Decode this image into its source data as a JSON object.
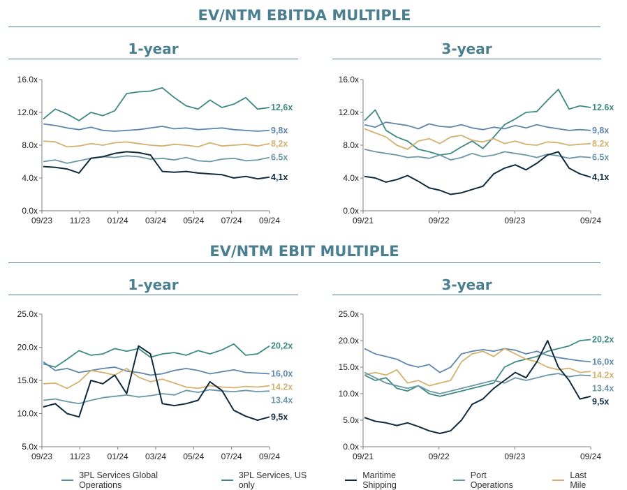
{
  "titles": {
    "ebitda": "EV/NTM EBITDA MULTIPLE",
    "ebit": "EV/NTM EBIT MULTIPLE"
  },
  "panels": {
    "one_year": "1-year",
    "three_year": "3-year"
  },
  "series_meta": [
    {
      "key": "global",
      "name": "3PL Services Global Operations",
      "color": "#5f87ad"
    },
    {
      "key": "us",
      "name": "3PL Services, US only",
      "color": "#3d8a82"
    },
    {
      "key": "maritime",
      "name": "Maritime Shipping",
      "color": "#0e2a3d"
    },
    {
      "key": "port",
      "name": "Port Operations",
      "color": "#6b97a6"
    },
    {
      "key": "lastmile",
      "name": "Last Mile",
      "color": "#d4b16e"
    }
  ],
  "chart_data": [
    {
      "id": "ebitda_1y",
      "type": "line",
      "ylim": [
        0,
        16
      ],
      "yticks": [
        "0.0x",
        "4.0x",
        "8.0x",
        "12.0x",
        "16.0x"
      ],
      "x_ticks": [
        "09/23",
        "11/23",
        "01/24",
        "03/24",
        "05/24",
        "07/24",
        "09/24"
      ],
      "series": [
        {
          "key": "us",
          "values": [
            11.2,
            12.4,
            11.8,
            11.0,
            12.0,
            11.6,
            12.2,
            14.3,
            14.5,
            14.6,
            15.0,
            13.8,
            12.8,
            12.4,
            13.5,
            12.6,
            13.0,
            13.8,
            12.4,
            12.6
          ],
          "label": "12,6x"
        },
        {
          "key": "global",
          "values": [
            10.6,
            10.4,
            10.1,
            9.9,
            10.2,
            9.8,
            9.7,
            9.8,
            9.9,
            10.1,
            10.3,
            10.0,
            10.1,
            9.9,
            10.0,
            10.1,
            9.9,
            9.8,
            9.7,
            9.8
          ],
          "label": "9,8x"
        },
        {
          "key": "lastmile",
          "values": [
            8.5,
            8.4,
            7.8,
            7.9,
            8.2,
            8.0,
            8.3,
            8.4,
            8.2,
            8.0,
            7.9,
            8.1,
            8.0,
            7.8,
            8.3,
            7.9,
            8.0,
            8.1,
            7.9,
            8.2
          ],
          "label": "8,2x"
        },
        {
          "key": "port",
          "values": [
            6.0,
            6.2,
            5.8,
            6.1,
            6.4,
            6.6,
            6.5,
            6.7,
            6.6,
            6.3,
            6.4,
            6.2,
            6.5,
            6.1,
            6.0,
            6.3,
            6.4,
            6.1,
            6.2,
            6.5
          ],
          "label": "6.5x"
        },
        {
          "key": "maritime",
          "values": [
            5.4,
            5.3,
            5.1,
            4.6,
            6.4,
            6.6,
            7.0,
            7.2,
            7.1,
            6.8,
            4.8,
            4.7,
            4.8,
            4.6,
            4.5,
            4.4,
            4.0,
            4.2,
            3.9,
            4.1
          ],
          "label": "4,1x"
        }
      ]
    },
    {
      "id": "ebitda_3y",
      "type": "line",
      "ylim": [
        0,
        16
      ],
      "yticks": [
        "0.0x",
        "4.0x",
        "8.0x",
        "12.0x",
        "16.0x"
      ],
      "x_ticks": [
        "09/21",
        "09/22",
        "09/23",
        "09/24"
      ],
      "series": [
        {
          "key": "us",
          "values": [
            11.0,
            12.3,
            9.8,
            9.0,
            8.5,
            7.5,
            7.2,
            6.8,
            7.0,
            7.8,
            8.5,
            7.6,
            9.0,
            10.5,
            11.2,
            12.0,
            12.1,
            13.5,
            14.8,
            12.4,
            12.8,
            12.6
          ],
          "label": "12.6x"
        },
        {
          "key": "global",
          "values": [
            10.5,
            10.2,
            10.8,
            10.6,
            10.4,
            10.0,
            10.6,
            10.3,
            10.2,
            10.5,
            10.1,
            9.9,
            10.2,
            10.0,
            10.4,
            10.1,
            10.5,
            10.2,
            10.0,
            9.8,
            9.9,
            9.8
          ],
          "label": "9,8x"
        },
        {
          "key": "lastmile",
          "values": [
            10.0,
            9.5,
            9.0,
            8.0,
            7.5,
            8.5,
            8.8,
            8.2,
            9.0,
            9.2,
            8.6,
            8.4,
            8.8,
            8.2,
            8.5,
            8.1,
            8.0,
            8.4,
            8.3,
            8.0,
            8.1,
            8.2
          ],
          "label": "8.2x"
        },
        {
          "key": "port",
          "values": [
            7.5,
            7.2,
            7.0,
            6.8,
            6.5,
            6.6,
            6.4,
            6.8,
            6.2,
            6.5,
            7.0,
            6.6,
            6.8,
            7.2,
            7.0,
            6.8,
            6.5,
            6.9,
            6.7,
            6.4,
            6.6,
            6.5
          ],
          "label": "6.5x"
        },
        {
          "key": "maritime",
          "values": [
            4.2,
            4.0,
            3.5,
            3.8,
            4.3,
            3.6,
            2.8,
            2.5,
            2.0,
            2.2,
            2.6,
            3.0,
            4.5,
            5.2,
            5.6,
            5.0,
            5.8,
            6.8,
            7.2,
            5.2,
            4.5,
            4.1
          ],
          "label": "4,1x"
        }
      ]
    },
    {
      "id": "ebit_1y",
      "type": "line",
      "ylim": [
        5,
        25
      ],
      "yticks": [
        "5.0x",
        "10.0x",
        "15.0x",
        "20.0x",
        "25.0x"
      ],
      "x_ticks": [
        "09/23",
        "11/23",
        "01/24",
        "03/24",
        "05/24",
        "07/24",
        "09/24"
      ],
      "series": [
        {
          "key": "us",
          "values": [
            17.5,
            17.0,
            18.2,
            19.5,
            18.8,
            19.0,
            19.8,
            19.4,
            19.8,
            18.5,
            19.0,
            19.2,
            18.8,
            19.5,
            19.0,
            19.6,
            20.5,
            18.8,
            19.0,
            20.2
          ],
          "label": "20,2x"
        },
        {
          "key": "global",
          "values": [
            17.8,
            16.5,
            16.8,
            16.2,
            16.5,
            16.8,
            17.0,
            16.4,
            16.2,
            15.8,
            16.0,
            16.5,
            16.8,
            16.5,
            16.0,
            16.3,
            16.6,
            16.2,
            16.1,
            16.0
          ],
          "label": "16,0x"
        },
        {
          "key": "lastmile",
          "values": [
            14.5,
            14.6,
            13.8,
            14.8,
            16.5,
            16.2,
            15.8,
            16.8,
            15.5,
            14.8,
            15.2,
            14.6,
            14.0,
            13.8,
            14.2,
            14.0,
            13.9,
            14.1,
            14.0,
            14.2
          ],
          "label": "14.2x"
        },
        {
          "key": "port",
          "values": [
            12.0,
            12.2,
            11.8,
            11.5,
            12.0,
            12.4,
            12.6,
            12.8,
            12.5,
            12.7,
            13.0,
            12.8,
            13.5,
            13.2,
            13.6,
            13.4,
            13.3,
            13.5,
            13.3,
            13.4
          ],
          "label": "13.4x"
        },
        {
          "key": "maritime",
          "values": [
            11.0,
            11.5,
            10.0,
            9.5,
            15.0,
            14.5,
            15.8,
            13.0,
            20.2,
            19.0,
            11.5,
            11.2,
            11.5,
            12.0,
            14.8,
            13.5,
            10.5,
            9.6,
            9.0,
            9.5
          ],
          "label": "9,5x"
        }
      ]
    },
    {
      "id": "ebit_3y",
      "type": "line",
      "ylim": [
        0,
        25
      ],
      "yticks": [
        "0.0x",
        "5.0x",
        "10.0x",
        "15.0x",
        "20.0x",
        "25.0x"
      ],
      "x_ticks": [
        "09/21",
        "09/22",
        "09/23",
        "09/24"
      ],
      "series": [
        {
          "key": "us",
          "values": [
            13.5,
            12.5,
            13.0,
            11.0,
            10.5,
            11.5,
            10.0,
            9.5,
            10.0,
            10.5,
            11.0,
            11.5,
            12.0,
            15.0,
            16.0,
            16.5,
            17.0,
            18.0,
            18.5,
            19.0,
            20.0,
            20.2
          ],
          "label": "20,2x"
        },
        {
          "key": "global",
          "values": [
            18.5,
            17.5,
            17.0,
            16.5,
            15.5,
            15.0,
            15.5,
            14.0,
            15.0,
            17.5,
            18.0,
            18.3,
            18.0,
            18.5,
            18.2,
            17.5,
            18.0,
            17.2,
            16.8,
            16.5,
            16.2,
            16.0
          ],
          "label": "16,0x"
        },
        {
          "key": "lastmile",
          "values": [
            13.5,
            14.0,
            13.5,
            14.5,
            12.0,
            12.5,
            11.5,
            12.0,
            12.5,
            16.0,
            17.5,
            18.0,
            17.0,
            18.5,
            17.5,
            16.5,
            16.0,
            15.0,
            14.5,
            14.8,
            14.0,
            14.2
          ],
          "label": "14.2x"
        },
        {
          "key": "port",
          "values": [
            14.0,
            13.0,
            12.0,
            11.5,
            11.0,
            11.5,
            10.5,
            10.0,
            10.5,
            11.0,
            11.5,
            12.0,
            12.5,
            12.0,
            13.0,
            12.5,
            13.0,
            13.5,
            13.8,
            13.2,
            13.5,
            13.4
          ],
          "label": "13.4x"
        },
        {
          "key": "maritime",
          "values": [
            5.5,
            4.8,
            4.5,
            4.0,
            4.5,
            3.8,
            3.0,
            2.5,
            3.0,
            5.0,
            8.0,
            9.0,
            11.0,
            12.5,
            14.0,
            13.0,
            16.0,
            20.0,
            15.0,
            12.5,
            9.0,
            9.5
          ],
          "label": "9,5x"
        }
      ]
    }
  ],
  "legend": [
    {
      "name": "3PL Services Global Operations",
      "color": "#5f87ad"
    },
    {
      "name": "3PL Services, US only",
      "color": "#3d8a82"
    },
    {
      "name": "Maritime Shipping",
      "color": "#0e2a3d"
    },
    {
      "name": "Port Operations",
      "color": "#6b97a6"
    },
    {
      "name": "Last Mile",
      "color": "#d4b16e"
    }
  ]
}
